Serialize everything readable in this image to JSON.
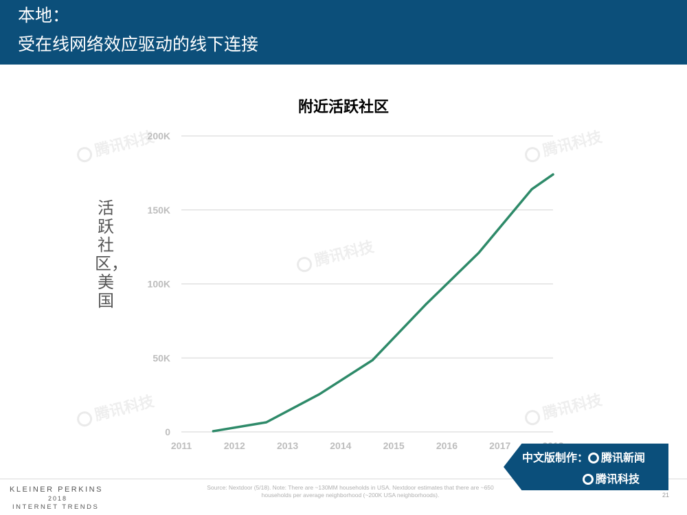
{
  "header": {
    "line1": "本地：",
    "line2": "受在线网络效应驱动的线下连接"
  },
  "chart_data": {
    "type": "line",
    "title": "附近活跃社区",
    "xlabel": "",
    "ylabel": "活跃社区，美国",
    "x": [
      2011.6,
      2012.6,
      2013.6,
      2014.6,
      2015.6,
      2016.6,
      2017.6,
      2018.0
    ],
    "series": [
      {
        "values": [
          500,
          6500,
          25500,
          48500,
          86000,
          121000,
          164000,
          174000
        ]
      }
    ],
    "xlim": [
      2011,
      2018
    ],
    "ylim": [
      0,
      200000
    ],
    "x_ticks": [
      "2011",
      "2012",
      "2013",
      "2014",
      "2015",
      "2016",
      "2017",
      "2018"
    ],
    "y_ticks": [
      "0",
      "50K",
      "100K",
      "150K",
      "200K"
    ],
    "grid": "horizontal",
    "line_color": "#2e8a69"
  },
  "watermark": {
    "text": "腾讯科技"
  },
  "footer": {
    "brand_line1": "KLEINER PERKINS",
    "brand_line2": "2018",
    "brand_line3": "INTERNET TRENDS",
    "source": "Source: Nextdoor (5/18). Note: There are ~130MM households in USA. Nextdoor estimates that there are ~650 households per average neighborhood (~200K USA neighborhoods).",
    "page_number": "21"
  },
  "badge": {
    "line1": "中文版制作：",
    "line1b": "腾讯新闻",
    "line2": "腾讯科技"
  }
}
